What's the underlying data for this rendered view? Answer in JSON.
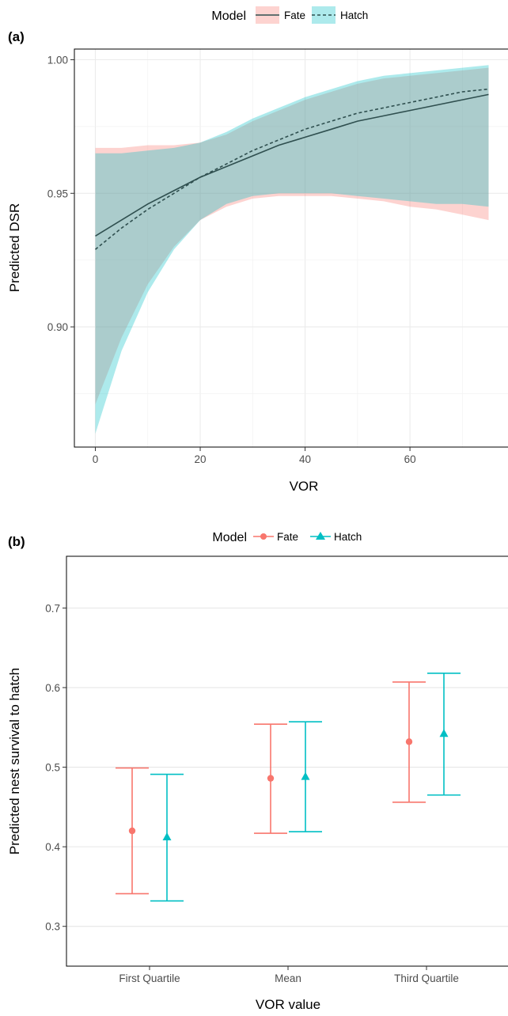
{
  "chart_data": [
    {
      "type": "line",
      "panel_label": "(a)",
      "xlabel": "VOR",
      "ylabel": "Predicted DSR",
      "xlim": [
        -4,
        79
      ],
      "ylim": [
        0.855,
        1.004
      ],
      "x_ticks": [
        0,
        20,
        40,
        60
      ],
      "y_ticks": [
        0.9,
        0.95,
        1.0
      ],
      "y_tick_labels": [
        "0.90",
        "0.95",
        "1.00"
      ],
      "grid": true,
      "legend": {
        "title": "Model",
        "placement": "top",
        "entries": [
          "Fate",
          "Hatch"
        ]
      },
      "colors": {
        "Fate": "#f8766d",
        "Hatch": "#00bfc4",
        "line": "#2f4f4f"
      },
      "series": [
        {
          "name": "Fate",
          "line_style": "solid",
          "x": [
            0,
            5,
            10,
            15,
            20,
            25,
            30,
            35,
            40,
            45,
            50,
            55,
            60,
            65,
            70,
            75
          ],
          "y": [
            0.934,
            0.94,
            0.946,
            0.951,
            0.956,
            0.96,
            0.964,
            0.968,
            0.971,
            0.974,
            0.977,
            0.979,
            0.981,
            0.983,
            0.985,
            0.987
          ],
          "lower": [
            0.871,
            0.896,
            0.916,
            0.93,
            0.94,
            0.945,
            0.948,
            0.949,
            0.949,
            0.949,
            0.948,
            0.947,
            0.945,
            0.944,
            0.942,
            0.94
          ],
          "upper": [
            0.967,
            0.967,
            0.968,
            0.968,
            0.969,
            0.972,
            0.977,
            0.981,
            0.985,
            0.988,
            0.991,
            0.993,
            0.994,
            0.995,
            0.996,
            0.997
          ]
        },
        {
          "name": "Hatch",
          "line_style": "dashed",
          "x": [
            0,
            5,
            10,
            15,
            20,
            25,
            30,
            35,
            40,
            45,
            50,
            55,
            60,
            65,
            70,
            75
          ],
          "y": [
            0.929,
            0.937,
            0.944,
            0.95,
            0.956,
            0.961,
            0.966,
            0.97,
            0.974,
            0.977,
            0.98,
            0.982,
            0.984,
            0.986,
            0.988,
            0.989
          ],
          "lower": [
            0.86,
            0.891,
            0.913,
            0.929,
            0.94,
            0.946,
            0.949,
            0.95,
            0.95,
            0.95,
            0.949,
            0.948,
            0.947,
            0.946,
            0.946,
            0.945
          ],
          "upper": [
            0.965,
            0.965,
            0.966,
            0.967,
            0.969,
            0.973,
            0.978,
            0.982,
            0.986,
            0.989,
            0.992,
            0.994,
            0.995,
            0.996,
            0.997,
            0.998
          ]
        }
      ]
    },
    {
      "type": "scatter",
      "panel_label": "(b)",
      "xlabel": "VOR value",
      "ylabel": "Predicted nest survival to hatch",
      "categories": [
        "First Quartile",
        "Mean",
        "Third Quartile"
      ],
      "ylim": [
        0.25,
        0.765
      ],
      "y_ticks": [
        0.3,
        0.4,
        0.5,
        0.6,
        0.7
      ],
      "y_tick_labels": [
        "0.3",
        "0.4",
        "0.5",
        "0.6",
        "0.7"
      ],
      "grid": true,
      "legend": {
        "title": "Model",
        "placement": "top",
        "entries": [
          "Fate",
          "Hatch"
        ]
      },
      "colors": {
        "Fate": "#f8766d",
        "Hatch": "#00bfc4"
      },
      "series": [
        {
          "name": "Fate",
          "marker": "circle",
          "values": [
            0.42,
            0.486,
            0.532
          ],
          "lower": [
            0.341,
            0.417,
            0.456
          ],
          "upper": [
            0.499,
            0.554,
            0.607
          ]
        },
        {
          "name": "Hatch",
          "marker": "triangle",
          "values": [
            0.412,
            0.488,
            0.542
          ],
          "lower": [
            0.332,
            0.419,
            0.465
          ],
          "upper": [
            0.491,
            0.557,
            0.618
          ]
        }
      ]
    }
  ]
}
